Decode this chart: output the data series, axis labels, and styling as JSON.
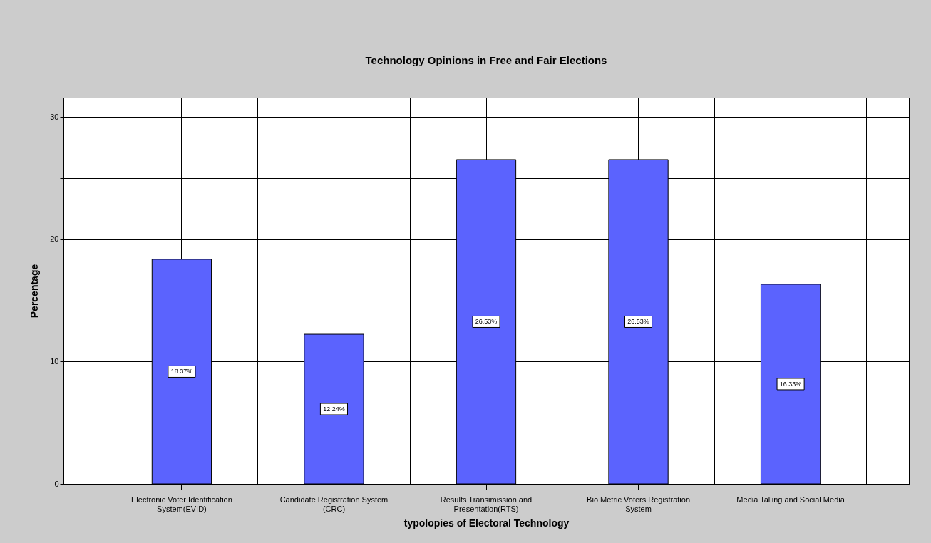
{
  "chart_data": {
    "type": "bar",
    "title": "Technology Opinions  in Free and Fair Elections",
    "xlabel": "typolopies of  Electoral Technology",
    "ylabel": "Percentage",
    "categories": [
      "Electronic Voter Identification System(EVID)",
      "Candidate Registration System (CRC)",
      "Results Transimission and Presentation(RTS)",
      "Bio Metric Voters Registration System",
      "Media Talling and Social Media"
    ],
    "values": [
      18.37,
      12.24,
      26.53,
      26.53,
      16.33
    ],
    "value_labels": [
      "18.37%",
      "12.24%",
      "26.53%",
      "26.53%",
      "16.33%"
    ],
    "color": "#5b63fe",
    "ylim": [
      0,
      31.6
    ],
    "yticks": [
      0,
      {
        "value": 5,
        "label": null
      },
      10,
      {
        "value": 15,
        "label": null
      },
      20,
      {
        "value": 25,
        "label": null
      },
      30
    ],
    "grid": true
  }
}
